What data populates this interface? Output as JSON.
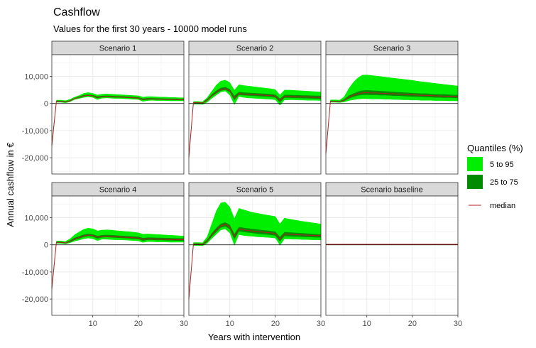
{
  "chart_data": {
    "type": "area",
    "title": "Cashflow",
    "subtitle": "Values for the first 30 years - 10000 model runs",
    "xlabel": "Years with intervention",
    "ylabel": "Annual cashflow in €",
    "xlim": [
      1,
      30
    ],
    "ylim": [
      -26000,
      18000
    ],
    "x_ticks": [
      10,
      20,
      30
    ],
    "x_tick_labels": [
      "10",
      "20",
      "30"
    ],
    "y_ticks": [
      -20000,
      -10000,
      0,
      10000
    ],
    "y_tick_labels": [
      "-20,000",
      "-10,000",
      "0",
      "10,000"
    ],
    "grid": true,
    "legend_placement": "right",
    "legend": {
      "title": "Quantiles (%)",
      "items": [
        {
          "label": "5 to 95",
          "color": "#00ee00",
          "kind": "fill"
        },
        {
          "label": "25 to 75",
          "color": "#008b00",
          "kind": "fill"
        },
        {
          "label": "median",
          "color": "#b22222",
          "kind": "line"
        }
      ]
    },
    "colors": {
      "q5_95": "#00ee00",
      "q25_75": "#008b00",
      "median": "#b22222"
    },
    "x": [
      1,
      2,
      3,
      4,
      5,
      6,
      7,
      8,
      9,
      10,
      11,
      12,
      13,
      14,
      15,
      16,
      17,
      18,
      19,
      20,
      21,
      22,
      23,
      24,
      25,
      26,
      27,
      28,
      29,
      30
    ],
    "panels": [
      {
        "name": "Scenario 1",
        "q05": [
          -17000,
          400,
          400,
          200,
          600,
          1400,
          1800,
          2200,
          2400,
          2200,
          1400,
          1900,
          2000,
          1900,
          1800,
          1800,
          1700,
          1600,
          1500,
          1400,
          700,
          1000,
          1100,
          1000,
          1000,
          1000,
          900,
          900,
          900,
          900
        ],
        "q25": [
          -16200,
          600,
          600,
          400,
          800,
          1700,
          2100,
          2600,
          2800,
          2600,
          1900,
          2300,
          2400,
          2300,
          2200,
          2200,
          2100,
          2000,
          1900,
          1800,
          1200,
          1400,
          1500,
          1400,
          1400,
          1300,
          1300,
          1300,
          1200,
          1200
        ],
        "median": [
          -15500,
          800,
          800,
          600,
          1000,
          1800,
          2300,
          2800,
          3000,
          2800,
          2200,
          2500,
          2600,
          2500,
          2400,
          2400,
          2300,
          2200,
          2100,
          2000,
          1500,
          1700,
          1700,
          1600,
          1600,
          1500,
          1500,
          1500,
          1400,
          1400
        ],
        "q75": [
          -14800,
          1000,
          1000,
          800,
          1200,
          2000,
          2500,
          3100,
          3300,
          3100,
          2600,
          2800,
          2900,
          2800,
          2700,
          2700,
          2600,
          2500,
          2400,
          2300,
          1800,
          2000,
          2000,
          1900,
          1900,
          1800,
          1800,
          1800,
          1700,
          1700
        ],
        "q95": [
          -14000,
          1300,
          1300,
          1100,
          1600,
          2400,
          3000,
          3800,
          4100,
          3800,
          3200,
          3500,
          3600,
          3500,
          3400,
          3300,
          3200,
          3100,
          3000,
          2900,
          2400,
          2600,
          2600,
          2500,
          2400,
          2400,
          2300,
          2300,
          2200,
          2200
        ]
      },
      {
        "name": "Scenario 2",
        "q05": [
          -21000,
          -300,
          -300,
          -400,
          400,
          1800,
          3000,
          4200,
          4500,
          3000,
          -500,
          2500,
          2200,
          2000,
          1900,
          1800,
          1700,
          1600,
          1500,
          1300,
          -700,
          1200,
          1300,
          1300,
          1200,
          1200,
          1100,
          1100,
          1100,
          1000
        ],
        "q25": [
          -20500,
          100,
          100,
          0,
          900,
          2500,
          3700,
          4700,
          5000,
          4200,
          1200,
          3200,
          3000,
          2900,
          2800,
          2700,
          2600,
          2500,
          2400,
          2200,
          400,
          2100,
          2100,
          2000,
          2000,
          1900,
          1900,
          1800,
          1800,
          1700
        ],
        "median": [
          -20000,
          300,
          300,
          200,
          1200,
          2900,
          4200,
          5200,
          5500,
          4700,
          2000,
          3700,
          3500,
          3400,
          3300,
          3200,
          3100,
          3000,
          2900,
          2700,
          1100,
          2600,
          2600,
          2500,
          2500,
          2400,
          2400,
          2300,
          2300,
          2200
        ],
        "q75": [
          -19500,
          500,
          500,
          400,
          1600,
          3300,
          4700,
          5800,
          6100,
          5300,
          2800,
          4300,
          4100,
          4000,
          3900,
          3800,
          3700,
          3600,
          3500,
          3300,
          1800,
          3200,
          3200,
          3100,
          3100,
          3000,
          3000,
          2900,
          2900,
          2800
        ],
        "q95": [
          -19000,
          800,
          800,
          700,
          2200,
          4500,
          6800,
          8300,
          8700,
          7800,
          5000,
          7000,
          6700,
          6500,
          6300,
          6100,
          5900,
          5700,
          5500,
          5200,
          3200,
          5000,
          5000,
          4900,
          4800,
          4700,
          4600,
          4500,
          4400,
          4300
        ]
      },
      {
        "name": "Scenario 3",
        "q05": [
          -19500,
          400,
          400,
          300,
          500,
          1000,
          1300,
          1600,
          1700,
          1700,
          1600,
          1600,
          1600,
          1500,
          1500,
          1400,
          1400,
          1300,
          1300,
          1200,
          1200,
          1100,
          1100,
          1100,
          1000,
          1000,
          1000,
          900,
          900,
          900
        ],
        "q25": [
          -19000,
          600,
          600,
          500,
          900,
          1800,
          2400,
          2900,
          3100,
          3200,
          3100,
          3100,
          3000,
          3000,
          2900,
          2800,
          2800,
          2700,
          2600,
          2500,
          2500,
          2400,
          2300,
          2300,
          2200,
          2200,
          2100,
          2100,
          2000,
          2000
        ],
        "median": [
          -18500,
          800,
          800,
          700,
          1200,
          2300,
          3000,
          3600,
          3900,
          4000,
          3900,
          3900,
          3800,
          3700,
          3600,
          3600,
          3500,
          3400,
          3300,
          3200,
          3100,
          3000,
          3000,
          2900,
          2800,
          2800,
          2700,
          2700,
          2600,
          2600
        ],
        "q75": [
          -18000,
          1000,
          1000,
          900,
          1500,
          2900,
          3700,
          4400,
          4800,
          4900,
          4800,
          4700,
          4600,
          4500,
          4400,
          4300,
          4200,
          4100,
          4000,
          3900,
          3800,
          3700,
          3700,
          3600,
          3500,
          3400,
          3400,
          3300,
          3200,
          3200
        ],
        "q95": [
          -17500,
          1400,
          1400,
          1300,
          2500,
          5500,
          7800,
          9500,
          10500,
          10600,
          10400,
          10200,
          10000,
          9800,
          9600,
          9400,
          9200,
          9000,
          8800,
          8600,
          8300,
          8100,
          7900,
          7700,
          7500,
          7300,
          7100,
          6900,
          6700,
          6500
        ]
      },
      {
        "name": "Scenario 4",
        "q05": [
          -17500,
          500,
          500,
          300,
          700,
          1300,
          1700,
          2200,
          2400,
          2200,
          1500,
          2000,
          2000,
          1900,
          1800,
          1800,
          1700,
          1600,
          1500,
          1400,
          800,
          1100,
          1100,
          1000,
          1000,
          1000,
          900,
          900,
          900,
          900
        ],
        "q25": [
          -16800,
          700,
          700,
          500,
          1000,
          1800,
          2300,
          2900,
          3200,
          3000,
          2300,
          2700,
          2800,
          2700,
          2600,
          2500,
          2400,
          2300,
          2200,
          2100,
          1500,
          1800,
          1800,
          1700,
          1700,
          1600,
          1600,
          1500,
          1500,
          1500
        ],
        "median": [
          -16200,
          900,
          900,
          700,
          1300,
          2200,
          2700,
          3300,
          3600,
          3400,
          2800,
          3100,
          3200,
          3100,
          3000,
          2900,
          2800,
          2700,
          2600,
          2500,
          2000,
          2200,
          2200,
          2100,
          2100,
          2000,
          2000,
          1900,
          1900,
          1900
        ],
        "q75": [
          -15500,
          1100,
          1100,
          900,
          1600,
          2600,
          3200,
          3800,
          4100,
          3900,
          3300,
          3600,
          3700,
          3600,
          3500,
          3400,
          3300,
          3200,
          3100,
          3000,
          2500,
          2700,
          2700,
          2600,
          2600,
          2500,
          2500,
          2400,
          2400,
          2400
        ],
        "q95": [
          -15000,
          1500,
          1500,
          1300,
          2300,
          3800,
          4800,
          5800,
          6200,
          6000,
          5200,
          5500,
          5600,
          5500,
          5300,
          5200,
          5000,
          4900,
          4700,
          4500,
          4000,
          4100,
          4000,
          3900,
          3800,
          3700,
          3600,
          3500,
          3400,
          3300
        ]
      },
      {
        "name": "Scenario 5",
        "q05": [
          -21000,
          -300,
          -300,
          -400,
          500,
          2200,
          3800,
          5400,
          5800,
          4300,
          -300,
          3700,
          3400,
          3200,
          3100,
          2900,
          2800,
          2700,
          2600,
          2400,
          -200,
          2100,
          2100,
          2000,
          2000,
          1900,
          1900,
          1800,
          1800,
          1700
        ],
        "q25": [
          -20500,
          100,
          100,
          0,
          1000,
          3000,
          4700,
          6300,
          6800,
          5800,
          2000,
          5000,
          4700,
          4500,
          4300,
          4100,
          3900,
          3800,
          3600,
          3400,
          1200,
          3200,
          3100,
          3000,
          3000,
          2900,
          2800,
          2800,
          2700,
          2700
        ],
        "median": [
          -20000,
          300,
          300,
          200,
          1400,
          3600,
          5400,
          7000,
          7500,
          6600,
          3000,
          5800,
          5500,
          5300,
          5100,
          4900,
          4700,
          4600,
          4400,
          4200,
          2000,
          4000,
          3900,
          3800,
          3700,
          3600,
          3600,
          3500,
          3400,
          3400
        ],
        "q75": [
          -19500,
          500,
          500,
          400,
          1800,
          4200,
          6200,
          7800,
          8300,
          7400,
          4000,
          6600,
          6300,
          6100,
          5900,
          5700,
          5500,
          5300,
          5100,
          4900,
          2900,
          4700,
          4600,
          4500,
          4400,
          4300,
          4200,
          4100,
          4000,
          3900
        ],
        "q95": [
          -19000,
          900,
          900,
          800,
          3000,
          7800,
          12500,
          15500,
          15800,
          14000,
          9800,
          13500,
          13000,
          12500,
          12000,
          11700,
          11400,
          11100,
          10800,
          10500,
          7800,
          9900,
          9600,
          9300,
          9000,
          8700,
          8500,
          8200,
          8000,
          7700
        ]
      },
      {
        "name": "Scenario baseline",
        "q05": [
          0,
          0,
          0,
          0,
          0,
          0,
          0,
          0,
          0,
          0,
          0,
          0,
          0,
          0,
          0,
          0,
          0,
          0,
          0,
          0,
          0,
          0,
          0,
          0,
          0,
          0,
          0,
          0,
          0,
          0
        ],
        "q25": [
          0,
          0,
          0,
          0,
          0,
          0,
          0,
          0,
          0,
          0,
          0,
          0,
          0,
          0,
          0,
          0,
          0,
          0,
          0,
          0,
          0,
          0,
          0,
          0,
          0,
          0,
          0,
          0,
          0,
          0
        ],
        "median": [
          200,
          200,
          200,
          200,
          200,
          200,
          200,
          200,
          200,
          200,
          200,
          200,
          200,
          200,
          200,
          200,
          200,
          200,
          200,
          200,
          200,
          200,
          200,
          200,
          200,
          200,
          200,
          200,
          200,
          200
        ],
        "q75": [
          250,
          250,
          250,
          250,
          250,
          250,
          250,
          250,
          250,
          250,
          250,
          250,
          250,
          250,
          250,
          250,
          250,
          250,
          250,
          250,
          250,
          250,
          250,
          250,
          250,
          250,
          250,
          250,
          250,
          250
        ],
        "q95": [
          300,
          300,
          300,
          300,
          300,
          300,
          300,
          300,
          300,
          300,
          300,
          300,
          300,
          300,
          300,
          300,
          300,
          300,
          300,
          300,
          300,
          300,
          300,
          300,
          300,
          300,
          300,
          300,
          300,
          300
        ]
      }
    ]
  }
}
